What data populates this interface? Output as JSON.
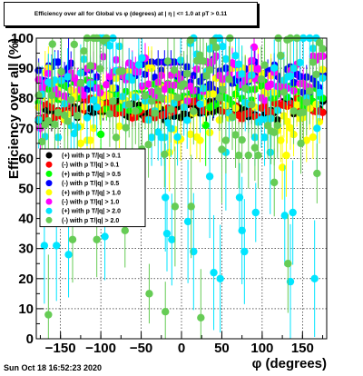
{
  "chart_data": {
    "type": "scatter",
    "title": "Efficiency over all for Global vs φ (degrees) at | η | <= 1.0 at pT > 0.11",
    "xlabel": "φ (degrees)",
    "ylabel": "Efficiency over all (%)",
    "xlim": [
      -180,
      180
    ],
    "ylim": [
      0,
      100
    ],
    "xticks": [
      -150,
      -100,
      -50,
      0,
      50,
      100,
      150
    ],
    "yticks": [
      0,
      10,
      20,
      30,
      40,
      50,
      60,
      70,
      80,
      90,
      100
    ],
    "grid": true,
    "legend_position": "middle-left",
    "series": [
      {
        "name": "(+) with p T/|q| > 0.1",
        "color": "#000000",
        "marker": "circle",
        "band": [
          73,
          79
        ],
        "outliers": []
      },
      {
        "name": "(-) with p T/|q| > 0.1",
        "color": "#ff0000",
        "marker": "circle",
        "band": [
          74,
          80
        ],
        "outliers": []
      },
      {
        "name": "(+) with p T/|q| > 0.5",
        "color": "#00ff00",
        "marker": "circle",
        "band": [
          77,
          86
        ],
        "outliers": [
          [
            -100,
            68
          ],
          [
            30,
            71
          ]
        ]
      },
      {
        "name": "(-) with p T/|q| > 0.5",
        "color": "#0000ff",
        "marker": "circle",
        "band": [
          82,
          92
        ],
        "outliers": [
          [
            -140,
            90
          ],
          [
            40,
            93
          ]
        ]
      },
      {
        "name": "(+) with p T/|q| > 1.0",
        "color": "#ffff00",
        "marker": "circle",
        "band": [
          67,
          90
        ],
        "outliers": [
          [
            -125,
            65
          ],
          [
            -15,
            62
          ],
          [
            125,
            57
          ],
          [
            130,
            61
          ]
        ]
      },
      {
        "name": "(-) with p T/|q| > 1.0",
        "color": "#ff00ff",
        "marker": "circle",
        "band": [
          80,
          94
        ],
        "outliers": [
          [
            -175,
            70
          ],
          [
            90,
            97
          ]
        ]
      },
      {
        "name": "(+) with p T/|q| > 2.0",
        "color": "#00e5ff",
        "marker": "circle",
        "band": [
          68,
          100
        ],
        "outliers": [
          [
            -170,
            31
          ],
          [
            -155,
            31
          ],
          [
            -140,
            28
          ],
          [
            -95,
            34
          ],
          [
            -20,
            47
          ],
          [
            -18,
            35
          ],
          [
            -12,
            33
          ],
          [
            8,
            39
          ],
          [
            15,
            29
          ],
          [
            35,
            54
          ],
          [
            40,
            22
          ],
          [
            48,
            20
          ],
          [
            55,
            62
          ],
          [
            72,
            47
          ],
          [
            75,
            36
          ],
          [
            78,
            29
          ],
          [
            92,
            42
          ],
          [
            110,
            62
          ],
          [
            128,
            41
          ],
          [
            138,
            42
          ],
          [
            135,
            19
          ],
          [
            165,
            20
          ],
          [
            168,
            70
          ]
        ]
      },
      {
        "name": "(-) with p T/|q| > 2.0",
        "color": "#66cc55",
        "marker": "circle",
        "band": [
          62,
          100
        ],
        "outliers": [
          [
            -165,
            8
          ],
          [
            -135,
            33
          ],
          [
            -105,
            33
          ],
          [
            -70,
            36
          ],
          [
            -40,
            15
          ],
          [
            -20,
            9
          ],
          [
            -8,
            44
          ],
          [
            12,
            44
          ],
          [
            24,
            7
          ],
          [
            50,
            63
          ],
          [
            115,
            52
          ],
          [
            132,
            25
          ],
          [
            148,
            65
          ],
          [
            168,
            55
          ],
          [
            -160,
            98
          ],
          [
            60,
            100
          ],
          [
            120,
            100
          ]
        ]
      }
    ]
  },
  "footer": {
    "timestamp": "Sun Oct 18 16:52:23 2020"
  }
}
